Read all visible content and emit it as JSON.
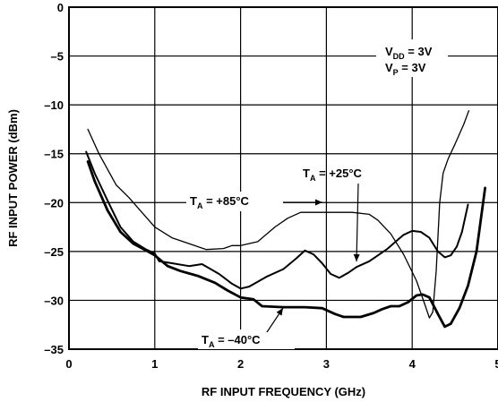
{
  "chart_data": {
    "type": "line",
    "xlabel": "RF INPUT FREQUENCY (GHz)",
    "ylabel": "RF INPUT POWER (dBm)",
    "xlim": [
      0,
      5
    ],
    "ylim": [
      -35,
      0
    ],
    "grid": true,
    "x_ticks": [
      0,
      1,
      2,
      3,
      4,
      5
    ],
    "x_tick_labels": [
      "0",
      "1",
      "2",
      "3",
      "4",
      "5"
    ],
    "y_ticks": [
      0,
      -5,
      -10,
      -15,
      -20,
      -25,
      -30,
      -35
    ],
    "y_tick_labels": [
      "0",
      "–5",
      "–10",
      "–15",
      "–20",
      "–25",
      "–30",
      "–35"
    ],
    "series": [
      {
        "key": "t85",
        "stroke": 1.3,
        "points": [
          [
            0.22,
            -12.5
          ],
          [
            0.35,
            -15.0
          ],
          [
            0.55,
            -18.2
          ],
          [
            0.7,
            -19.5
          ],
          [
            0.8,
            -20.5
          ],
          [
            1.0,
            -22.5
          ],
          [
            1.2,
            -23.6
          ],
          [
            1.4,
            -24.2
          ],
          [
            1.6,
            -24.8
          ],
          [
            1.8,
            -24.7
          ],
          [
            1.9,
            -24.4
          ],
          [
            2.0,
            -24.4
          ],
          [
            2.2,
            -24.0
          ],
          [
            2.4,
            -22.5
          ],
          [
            2.55,
            -21.6
          ],
          [
            2.7,
            -21.0
          ],
          [
            3.0,
            -21.0
          ],
          [
            3.3,
            -21.0
          ],
          [
            3.5,
            -21.2
          ],
          [
            3.6,
            -21.8
          ],
          [
            3.75,
            -23.2
          ],
          [
            3.9,
            -25.3
          ],
          [
            4.05,
            -28.0
          ],
          [
            4.15,
            -30.5
          ],
          [
            4.2,
            -31.8
          ],
          [
            4.24,
            -31.2
          ],
          [
            4.28,
            -27.0
          ],
          [
            4.32,
            -20.0
          ],
          [
            4.36,
            -17.0
          ],
          [
            4.42,
            -15.5
          ],
          [
            4.5,
            -14.0
          ],
          [
            4.6,
            -12.0
          ],
          [
            4.66,
            -10.6
          ]
        ]
      },
      {
        "key": "t25",
        "stroke": 2.0,
        "points": [
          [
            0.2,
            -14.8
          ],
          [
            0.3,
            -17.0
          ],
          [
            0.45,
            -19.8
          ],
          [
            0.6,
            -22.5
          ],
          [
            0.75,
            -24.0
          ],
          [
            0.9,
            -24.8
          ],
          [
            1.0,
            -25.2
          ],
          [
            1.05,
            -26.0
          ],
          [
            1.2,
            -26.2
          ],
          [
            1.4,
            -26.5
          ],
          [
            1.55,
            -26.3
          ],
          [
            1.65,
            -26.8
          ],
          [
            1.75,
            -27.3
          ],
          [
            1.9,
            -28.3
          ],
          [
            2.0,
            -28.8
          ],
          [
            2.1,
            -28.6
          ],
          [
            2.3,
            -27.6
          ],
          [
            2.5,
            -26.8
          ],
          [
            2.65,
            -25.7
          ],
          [
            2.75,
            -24.9
          ],
          [
            2.85,
            -25.3
          ],
          [
            2.95,
            -26.2
          ],
          [
            3.05,
            -27.3
          ],
          [
            3.15,
            -27.7
          ],
          [
            3.25,
            -27.2
          ],
          [
            3.35,
            -26.6
          ],
          [
            3.5,
            -26.0
          ],
          [
            3.7,
            -24.8
          ],
          [
            3.9,
            -23.3
          ],
          [
            4.0,
            -22.9
          ],
          [
            4.1,
            -23.0
          ],
          [
            4.2,
            -23.6
          ],
          [
            4.3,
            -25.0
          ],
          [
            4.38,
            -25.6
          ],
          [
            4.45,
            -25.4
          ],
          [
            4.52,
            -24.5
          ],
          [
            4.58,
            -23.0
          ],
          [
            4.65,
            -20.2
          ]
        ]
      },
      {
        "key": "tm40",
        "stroke": 2.8,
        "points": [
          [
            0.22,
            -15.8
          ],
          [
            0.3,
            -17.8
          ],
          [
            0.45,
            -20.8
          ],
          [
            0.6,
            -23.0
          ],
          [
            0.75,
            -24.2
          ],
          [
            0.9,
            -24.9
          ],
          [
            1.0,
            -25.4
          ],
          [
            1.15,
            -26.5
          ],
          [
            1.3,
            -27.0
          ],
          [
            1.5,
            -27.5
          ],
          [
            1.7,
            -28.2
          ],
          [
            1.85,
            -29.0
          ],
          [
            2.0,
            -29.7
          ],
          [
            2.15,
            -29.9
          ],
          [
            2.25,
            -30.6
          ],
          [
            2.5,
            -30.7
          ],
          [
            2.75,
            -30.7
          ],
          [
            2.95,
            -30.8
          ],
          [
            3.1,
            -31.4
          ],
          [
            3.2,
            -31.7
          ],
          [
            3.4,
            -31.7
          ],
          [
            3.55,
            -31.3
          ],
          [
            3.65,
            -30.9
          ],
          [
            3.75,
            -30.6
          ],
          [
            3.85,
            -30.6
          ],
          [
            3.95,
            -30.2
          ],
          [
            4.05,
            -29.5
          ],
          [
            4.12,
            -29.4
          ],
          [
            4.2,
            -29.7
          ],
          [
            4.3,
            -31.4
          ],
          [
            4.38,
            -32.7
          ],
          [
            4.45,
            -32.4
          ],
          [
            4.55,
            -30.8
          ],
          [
            4.65,
            -28.5
          ],
          [
            4.75,
            -25.0
          ],
          [
            4.85,
            -18.5
          ]
        ]
      }
    ],
    "annotations": [
      {
        "key": "a85",
        "text": "T",
        "sub": "A",
        "rest": " = +85°C"
      },
      {
        "key": "a25",
        "text": "T",
        "sub": "A",
        "rest": " = +25°C"
      },
      {
        "key": "am40",
        "text": "T",
        "sub": "A",
        "rest": " = –40°C"
      }
    ],
    "conditions": [
      {
        "key": "vdd",
        "text": "V",
        "sub": "DD",
        "rest": " = 3V"
      },
      {
        "key": "vp",
        "text": "V",
        "sub": "P",
        "rest": " = 3V"
      }
    ]
  }
}
